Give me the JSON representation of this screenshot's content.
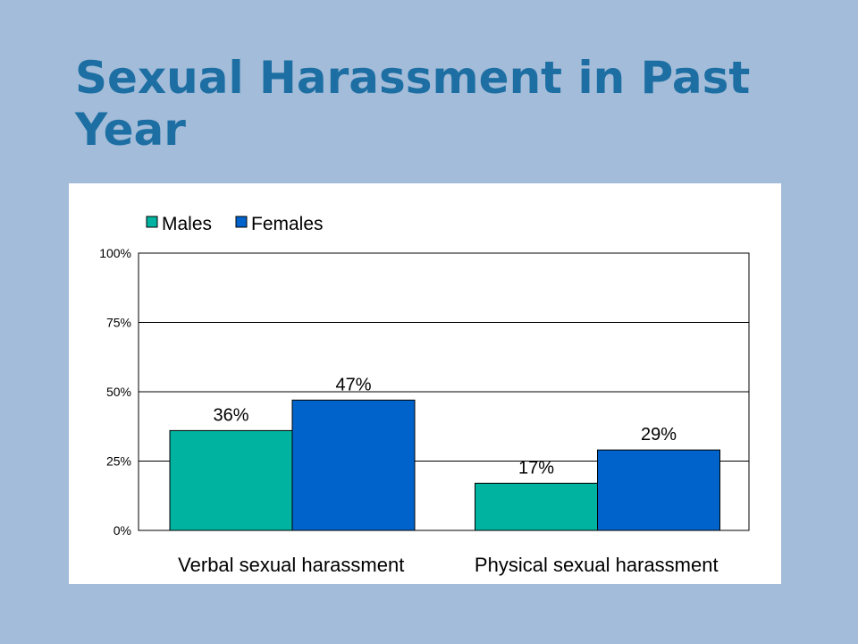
{
  "slide": {
    "title": "Sexual Harassment in Past Year"
  },
  "colors": {
    "background": "#a3bcd9",
    "title": "#1d6fa3",
    "males": "#00b3a0",
    "females": "#0063cc"
  },
  "chart_data": {
    "type": "bar",
    "categories": [
      "Verbal sexual harassment",
      "Physical sexual harassment"
    ],
    "series": [
      {
        "name": "Males",
        "values": [
          36,
          17
        ],
        "labels": [
          "36%",
          "17%"
        ]
      },
      {
        "name": "Females",
        "values": [
          47,
          29
        ],
        "labels": [
          "47%",
          "29%"
        ]
      }
    ],
    "ylim": [
      0,
      100
    ],
    "yticks": [
      0,
      25,
      50,
      75,
      100
    ],
    "ytick_labels": [
      "0%",
      "25%",
      "50%",
      "75%",
      "100%"
    ],
    "grid": true,
    "legend": "top-left"
  }
}
